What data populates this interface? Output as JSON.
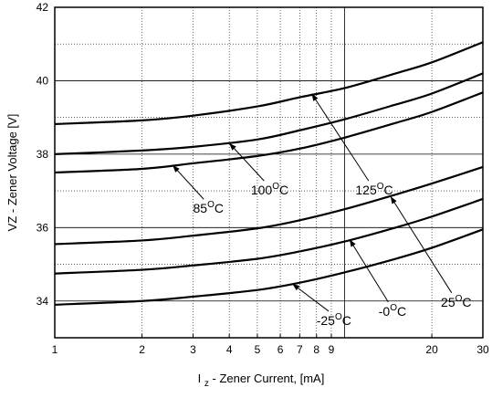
{
  "chart_data": {
    "type": "line",
    "title": "",
    "xlabel": {
      "main": "I",
      "sub": "z",
      "rest": " - Zener Current, [mA]"
    },
    "ylabel": "VZ -  Zener Voltage [V]",
    "x_scale": "log",
    "xlim": [
      1,
      30
    ],
    "ylim": [
      33,
      42
    ],
    "x_ticks": [
      1,
      2,
      3,
      4,
      5,
      6,
      7,
      8,
      9,
      20,
      30
    ],
    "x_tick_labels": [
      "1",
      "2",
      "3",
      "4",
      "5",
      "6",
      "7",
      "8",
      "9",
      "20",
      "30"
    ],
    "y_ticks": [
      34,
      36,
      38,
      40,
      42
    ],
    "y_tick_labels": [
      "34",
      "36",
      "38",
      "40",
      "42"
    ],
    "grid": true,
    "series": [
      {
        "name": "125°C",
        "points": [
          [
            1,
            38.82
          ],
          [
            2,
            38.92
          ],
          [
            3,
            39.05
          ],
          [
            5,
            39.3
          ],
          [
            7,
            39.55
          ],
          [
            10,
            39.8
          ],
          [
            15,
            40.2
          ],
          [
            20,
            40.5
          ],
          [
            30,
            41.05
          ]
        ]
      },
      {
        "name": "100°C",
        "points": [
          [
            1,
            38.0
          ],
          [
            2,
            38.1
          ],
          [
            3,
            38.2
          ],
          [
            5,
            38.4
          ],
          [
            7,
            38.65
          ],
          [
            10,
            38.95
          ],
          [
            15,
            39.35
          ],
          [
            20,
            39.65
          ],
          [
            30,
            40.2
          ]
        ]
      },
      {
        "name": "85°C",
        "points": [
          [
            1,
            37.5
          ],
          [
            2,
            37.6
          ],
          [
            3,
            37.75
          ],
          [
            5,
            37.95
          ],
          [
            7,
            38.15
          ],
          [
            10,
            38.45
          ],
          [
            15,
            38.85
          ],
          [
            20,
            39.15
          ],
          [
            30,
            39.68
          ]
        ]
      },
      {
        "name": "25°C",
        "points": [
          [
            1,
            35.55
          ],
          [
            2,
            35.65
          ],
          [
            3,
            35.78
          ],
          [
            5,
            35.98
          ],
          [
            7,
            36.2
          ],
          [
            10,
            36.5
          ],
          [
            15,
            36.9
          ],
          [
            20,
            37.2
          ],
          [
            30,
            37.65
          ]
        ]
      },
      {
        "name": "-0°C",
        "points": [
          [
            1,
            34.75
          ],
          [
            2,
            34.85
          ],
          [
            3,
            34.97
          ],
          [
            5,
            35.15
          ],
          [
            7,
            35.35
          ],
          [
            10,
            35.62
          ],
          [
            15,
            36.0
          ],
          [
            20,
            36.3
          ],
          [
            30,
            36.78
          ]
        ]
      },
      {
        "name": "-25°C",
        "points": [
          [
            1,
            33.9
          ],
          [
            2,
            34.0
          ],
          [
            3,
            34.12
          ],
          [
            5,
            34.3
          ],
          [
            7,
            34.5
          ],
          [
            10,
            34.78
          ],
          [
            15,
            35.15
          ],
          [
            20,
            35.45
          ],
          [
            30,
            35.95
          ]
        ]
      }
    ],
    "annotations": [
      {
        "base": "125",
        "sup": "O",
        "unit": "C",
        "at": [
          10.9,
          36.9
        ],
        "arrow_to": [
          7.7,
          39.65
        ]
      },
      {
        "base": "100",
        "sup": "O",
        "unit": "C",
        "at": [
          4.75,
          36.9
        ],
        "arrow_to": [
          4.0,
          38.3
        ]
      },
      {
        "base": "85",
        "sup": "O",
        "unit": "C",
        "at": [
          3.0,
          36.4
        ],
        "arrow_to": [
          2.55,
          37.7
        ]
      },
      {
        "base": "25",
        "sup": "O",
        "unit": "C",
        "at": [
          21.5,
          33.85
        ],
        "arrow_to": [
          14.4,
          36.85
        ]
      },
      {
        "base": "-0",
        "sup": "O",
        "unit": "C",
        "at": [
          13.1,
          33.6
        ],
        "arrow_to": [
          10.4,
          35.68
        ]
      },
      {
        "base": "-25",
        "sup": "O",
        "unit": "C",
        "at": [
          8.0,
          33.35
        ],
        "arrow_to": [
          6.6,
          34.47
        ]
      }
    ],
    "colors": {
      "line": "#000000",
      "grid": "#000000",
      "background": "#ffffff"
    }
  }
}
